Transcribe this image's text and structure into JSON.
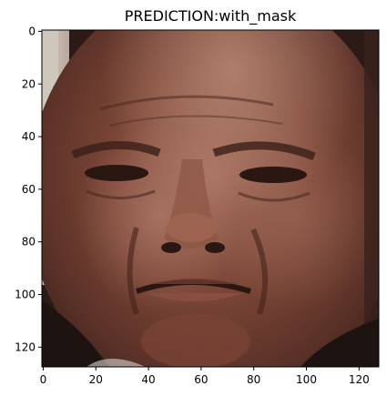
{
  "figure": {
    "title": "PREDICTION:with_mask"
  },
  "axes": {
    "x_ticks": [
      "0",
      "20",
      "40",
      "60",
      "80",
      "100",
      "120"
    ],
    "y_ticks": [
      "0",
      "20",
      "40",
      "60",
      "80",
      "100",
      "120"
    ],
    "xlim": [
      -0.5,
      127.5
    ],
    "ylim": [
      127.5,
      -0.5
    ]
  },
  "image": {
    "description_colors": {
      "skin_dark": "#4a2a20",
      "skin_mid": "#7a4a3a",
      "skin_light": "#a87664",
      "background_light": "#c9c2b6",
      "shadow": "#1f1412"
    }
  }
}
